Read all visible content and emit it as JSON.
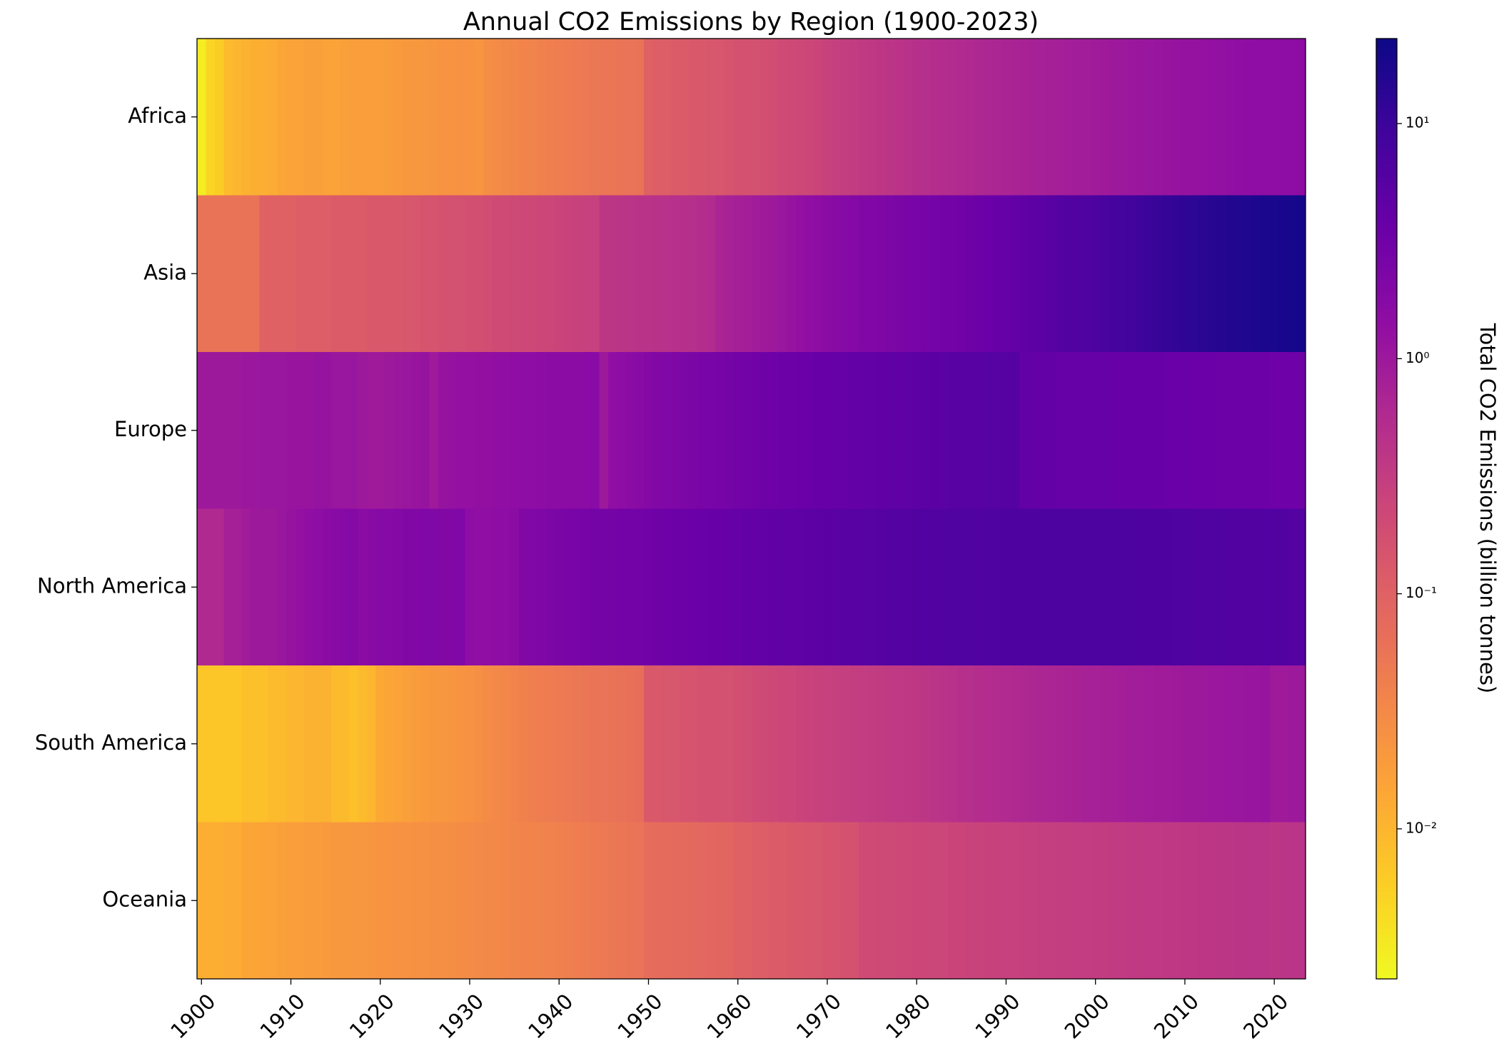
{
  "chart_data": {
    "type": "heatmap",
    "title": "Annual CO2 Emissions by Region (1900-2023)",
    "colormap": "plasma_r",
    "log_scale": true,
    "colorbar_label": "Total CO2 Emissions (billion tonnes)",
    "zlim": [
      0.0023,
      23
    ],
    "colorbar_ticks": [
      {
        "value": 0.01,
        "label": "10⁻²"
      },
      {
        "value": 0.1,
        "label": "10⁻¹"
      },
      {
        "value": 1,
        "label": "10⁰"
      },
      {
        "value": 10,
        "label": "10¹"
      }
    ],
    "xlim": [
      1899.5,
      2023.5
    ],
    "xticks": [
      1900,
      1910,
      1920,
      1930,
      1940,
      1950,
      1960,
      1970,
      1980,
      1990,
      2000,
      2010,
      2020
    ],
    "x": [
      1900,
      1901,
      1902,
      1903,
      1904,
      1905,
      1906,
      1907,
      1908,
      1909,
      1910,
      1911,
      1912,
      1913,
      1914,
      1915,
      1916,
      1917,
      1918,
      1919,
      1920,
      1921,
      1922,
      1923,
      1924,
      1925,
      1926,
      1927,
      1928,
      1929,
      1930,
      1931,
      1932,
      1933,
      1934,
      1935,
      1936,
      1937,
      1938,
      1939,
      1940,
      1941,
      1942,
      1943,
      1944,
      1945,
      1946,
      1947,
      1948,
      1949,
      1950,
      1951,
      1952,
      1953,
      1954,
      1955,
      1956,
      1957,
      1958,
      1959,
      1960,
      1961,
      1962,
      1963,
      1964,
      1965,
      1966,
      1967,
      1968,
      1969,
      1970,
      1971,
      1972,
      1973,
      1974,
      1975,
      1976,
      1977,
      1978,
      1979,
      1980,
      1981,
      1982,
      1983,
      1984,
      1985,
      1986,
      1987,
      1988,
      1989,
      1990,
      1991,
      1992,
      1993,
      1994,
      1995,
      1996,
      1997,
      1998,
      1999,
      2000,
      2001,
      2002,
      2003,
      2004,
      2005,
      2006,
      2007,
      2008,
      2009,
      2010,
      2011,
      2012,
      2013,
      2014,
      2015,
      2016,
      2017,
      2018,
      2019,
      2020,
      2021,
      2022,
      2023
    ],
    "series": [
      {
        "name": "Africa",
        "values": [
          0.003,
          0.005,
          0.006,
          0.009,
          0.01,
          0.011,
          0.012,
          0.012,
          0.013,
          0.015,
          0.016,
          0.016,
          0.017,
          0.017,
          0.016,
          0.016,
          0.017,
          0.018,
          0.018,
          0.018,
          0.018,
          0.019,
          0.02,
          0.021,
          0.021,
          0.022,
          0.023,
          0.024,
          0.024,
          0.025,
          0.024,
          0.023,
          0.028,
          0.03,
          0.032,
          0.034,
          0.036,
          0.038,
          0.04,
          0.042,
          0.044,
          0.046,
          0.048,
          0.05,
          0.052,
          0.054,
          0.055,
          0.057,
          0.058,
          0.06,
          0.1,
          0.11,
          0.11,
          0.12,
          0.12,
          0.13,
          0.13,
          0.14,
          0.14,
          0.15,
          0.16,
          0.16,
          0.17,
          0.18,
          0.19,
          0.2,
          0.21,
          0.22,
          0.23,
          0.25,
          0.27,
          0.29,
          0.31,
          0.33,
          0.35,
          0.37,
          0.39,
          0.41,
          0.43,
          0.45,
          0.48,
          0.5,
          0.52,
          0.54,
          0.56,
          0.58,
          0.6,
          0.62,
          0.64,
          0.66,
          0.7,
          0.72,
          0.74,
          0.76,
          0.78,
          0.8,
          0.82,
          0.84,
          0.86,
          0.88,
          0.92,
          0.95,
          0.98,
          1.01,
          1.04,
          1.07,
          1.1,
          1.13,
          1.16,
          1.19,
          1.22,
          1.25,
          1.28,
          1.31,
          1.34,
          1.37,
          1.4,
          1.43,
          1.46,
          1.49,
          1.45,
          1.48,
          1.5,
          1.52
        ]
      },
      {
        "name": "Asia",
        "values": [
          0.06,
          0.06,
          0.06,
          0.06,
          0.06,
          0.06,
          0.06,
          0.1,
          0.1,
          0.1,
          0.1,
          0.11,
          0.11,
          0.11,
          0.11,
          0.12,
          0.12,
          0.12,
          0.12,
          0.13,
          0.13,
          0.13,
          0.13,
          0.14,
          0.14,
          0.15,
          0.15,
          0.16,
          0.17,
          0.17,
          0.18,
          0.18,
          0.19,
          0.2,
          0.2,
          0.21,
          0.22,
          0.22,
          0.23,
          0.24,
          0.25,
          0.26,
          0.27,
          0.28,
          0.28,
          0.4,
          0.4,
          0.41,
          0.42,
          0.43,
          0.44,
          0.45,
          0.46,
          0.47,
          0.48,
          0.5,
          0.52,
          0.55,
          0.7,
          0.75,
          0.8,
          0.85,
          0.9,
          0.95,
          1.0,
          1.1,
          1.2,
          1.3,
          1.4,
          1.5,
          1.6,
          1.7,
          1.8,
          1.9,
          2.0,
          2.1,
          2.2,
          2.3,
          2.4,
          2.5,
          2.6,
          2.7,
          2.8,
          2.9,
          3.0,
          3.1,
          3.2,
          3.4,
          3.6,
          3.8,
          4.0,
          4.3,
          4.6,
          4.9,
          5.2,
          5.5,
          5.8,
          6.1,
          6.4,
          6.7,
          7.0,
          7.5,
          8.0,
          8.5,
          9.0,
          9.6,
          10.2,
          10.8,
          11.4,
          12.0,
          12.6,
          13.2,
          13.8,
          14.4,
          15.0,
          15.6,
          16.2,
          16.8,
          17.4,
          18.0,
          18.5,
          19.0,
          19.5,
          20.0
        ]
      },
      {
        "name": "Europe",
        "values": [
          1.0,
          1.0,
          1.0,
          1.0,
          1.0,
          1.05,
          1.05,
          1.1,
          1.1,
          1.1,
          1.15,
          1.15,
          1.15,
          1.2,
          1.2,
          1.1,
          1.1,
          1.1,
          1.0,
          0.95,
          0.95,
          1.0,
          1.05,
          1.1,
          1.15,
          1.2,
          0.95,
          1.2,
          1.25,
          1.3,
          1.3,
          1.35,
          1.35,
          1.4,
          1.4,
          1.45,
          1.5,
          1.5,
          1.55,
          1.6,
          1.6,
          1.6,
          1.6,
          1.65,
          1.7,
          1.0,
          1.4,
          1.5,
          1.6,
          1.7,
          1.9,
          2.0,
          2.1,
          2.2,
          2.3,
          2.4,
          2.5,
          2.6,
          2.7,
          2.8,
          2.9,
          3.0,
          3.1,
          3.2,
          3.3,
          3.4,
          3.5,
          3.6,
          3.7,
          3.8,
          3.9,
          4.0,
          4.1,
          4.2,
          4.3,
          4.4,
          4.5,
          4.6,
          4.7,
          4.8,
          4.9,
          5.0,
          5.1,
          5.2,
          5.3,
          5.4,
          5.5,
          5.5,
          5.6,
          5.6,
          5.7,
          5.7,
          4.4,
          4.3,
          4.2,
          4.2,
          4.1,
          4.1,
          4.0,
          4.0,
          4.0,
          4.0,
          3.9,
          3.9,
          3.9,
          3.8,
          3.8,
          3.8,
          3.7,
          3.7,
          3.7,
          3.6,
          3.6,
          3.6,
          3.5,
          3.5,
          3.5,
          3.4,
          3.4,
          3.4,
          3.3,
          3.3,
          3.3,
          3.2
        ]
      },
      {
        "name": "North America",
        "values": [
          0.6,
          0.6,
          0.6,
          0.8,
          0.8,
          0.9,
          1.0,
          1.0,
          1.0,
          1.1,
          1.2,
          1.3,
          1.4,
          1.5,
          1.6,
          1.7,
          1.8,
          1.9,
          1.6,
          1.7,
          1.8,
          1.8,
          1.9,
          2.0,
          2.0,
          2.1,
          2.1,
          2.0,
          2.0,
          2.1,
          1.5,
          1.4,
          1.4,
          1.5,
          1.5,
          1.6,
          2.0,
          2.1,
          2.2,
          2.3,
          2.4,
          2.5,
          2.6,
          2.7,
          2.8,
          2.8,
          2.8,
          2.9,
          2.9,
          3.0,
          3.1,
          3.2,
          3.3,
          3.4,
          3.5,
          3.6,
          3.7,
          3.8,
          3.9,
          4.0,
          4.1,
          4.2,
          4.3,
          4.4,
          4.5,
          4.6,
          4.7,
          4.8,
          4.9,
          5.0,
          5.1,
          5.2,
          5.3,
          5.4,
          5.5,
          5.6,
          5.7,
          5.8,
          5.9,
          6.0,
          6.1,
          6.2,
          6.3,
          6.4,
          6.5,
          6.5,
          6.6,
          6.6,
          6.7,
          6.7,
          6.8,
          6.8,
          6.9,
          6.9,
          7.0,
          7.0,
          7.1,
          7.1,
          7.2,
          7.2,
          7.2,
          7.1,
          7.1,
          7.0,
          7.0,
          6.9,
          6.9,
          6.8,
          6.8,
          6.7,
          6.7,
          6.6,
          6.6,
          6.5,
          6.5,
          6.4,
          6.4,
          6.3,
          6.3,
          6.2,
          6.1,
          6.1,
          6.0,
          6.0
        ]
      },
      {
        "name": "South America",
        "values": [
          0.007,
          0.007,
          0.007,
          0.007,
          0.007,
          0.008,
          0.008,
          0.008,
          0.009,
          0.009,
          0.01,
          0.01,
          0.011,
          0.011,
          0.011,
          0.009,
          0.009,
          0.008,
          0.009,
          0.01,
          0.014,
          0.015,
          0.016,
          0.017,
          0.019,
          0.02,
          0.021,
          0.022,
          0.023,
          0.024,
          0.025,
          0.027,
          0.03,
          0.032,
          0.034,
          0.036,
          0.04,
          0.042,
          0.044,
          0.046,
          0.048,
          0.05,
          0.052,
          0.054,
          0.056,
          0.058,
          0.06,
          0.062,
          0.064,
          0.066,
          0.13,
          0.13,
          0.14,
          0.14,
          0.15,
          0.15,
          0.16,
          0.16,
          0.17,
          0.17,
          0.18,
          0.19,
          0.2,
          0.21,
          0.22,
          0.23,
          0.24,
          0.25,
          0.26,
          0.27,
          0.28,
          0.29,
          0.3,
          0.31,
          0.32,
          0.33,
          0.34,
          0.35,
          0.36,
          0.37,
          0.38,
          0.4,
          0.42,
          0.44,
          0.46,
          0.48,
          0.5,
          0.52,
          0.54,
          0.56,
          0.58,
          0.6,
          0.62,
          0.64,
          0.66,
          0.68,
          0.7,
          0.72,
          0.74,
          0.76,
          0.78,
          0.8,
          0.82,
          0.84,
          0.86,
          0.88,
          0.9,
          0.92,
          0.94,
          0.96,
          0.98,
          1.0,
          1.02,
          1.04,
          1.06,
          1.08,
          1.1,
          1.12,
          1.14,
          1.16,
          0.95,
          0.97,
          0.99,
          1.0
        ]
      },
      {
        "name": "Oceania",
        "values": [
          0.012,
          0.012,
          0.012,
          0.013,
          0.013,
          0.015,
          0.015,
          0.016,
          0.016,
          0.017,
          0.018,
          0.018,
          0.019,
          0.019,
          0.02,
          0.021,
          0.021,
          0.022,
          0.022,
          0.023,
          0.024,
          0.024,
          0.025,
          0.025,
          0.026,
          0.026,
          0.027,
          0.027,
          0.028,
          0.029,
          0.03,
          0.031,
          0.032,
          0.033,
          0.034,
          0.035,
          0.036,
          0.037,
          0.038,
          0.039,
          0.04,
          0.042,
          0.044,
          0.046,
          0.048,
          0.05,
          0.052,
          0.054,
          0.056,
          0.058,
          0.07,
          0.072,
          0.074,
          0.076,
          0.078,
          0.08,
          0.082,
          0.084,
          0.086,
          0.088,
          0.1,
          0.1,
          0.11,
          0.11,
          0.12,
          0.12,
          0.13,
          0.13,
          0.14,
          0.14,
          0.15,
          0.15,
          0.16,
          0.16,
          0.2,
          0.2,
          0.21,
          0.21,
          0.22,
          0.22,
          0.23,
          0.23,
          0.24,
          0.24,
          0.25,
          0.25,
          0.26,
          0.26,
          0.27,
          0.27,
          0.28,
          0.28,
          0.29,
          0.29,
          0.3,
          0.3,
          0.31,
          0.31,
          0.32,
          0.32,
          0.33,
          0.33,
          0.34,
          0.34,
          0.35,
          0.35,
          0.36,
          0.36,
          0.37,
          0.37,
          0.38,
          0.38,
          0.39,
          0.39,
          0.4,
          0.4,
          0.41,
          0.41,
          0.42,
          0.42,
          0.4,
          0.41,
          0.42,
          0.42
        ]
      }
    ]
  }
}
